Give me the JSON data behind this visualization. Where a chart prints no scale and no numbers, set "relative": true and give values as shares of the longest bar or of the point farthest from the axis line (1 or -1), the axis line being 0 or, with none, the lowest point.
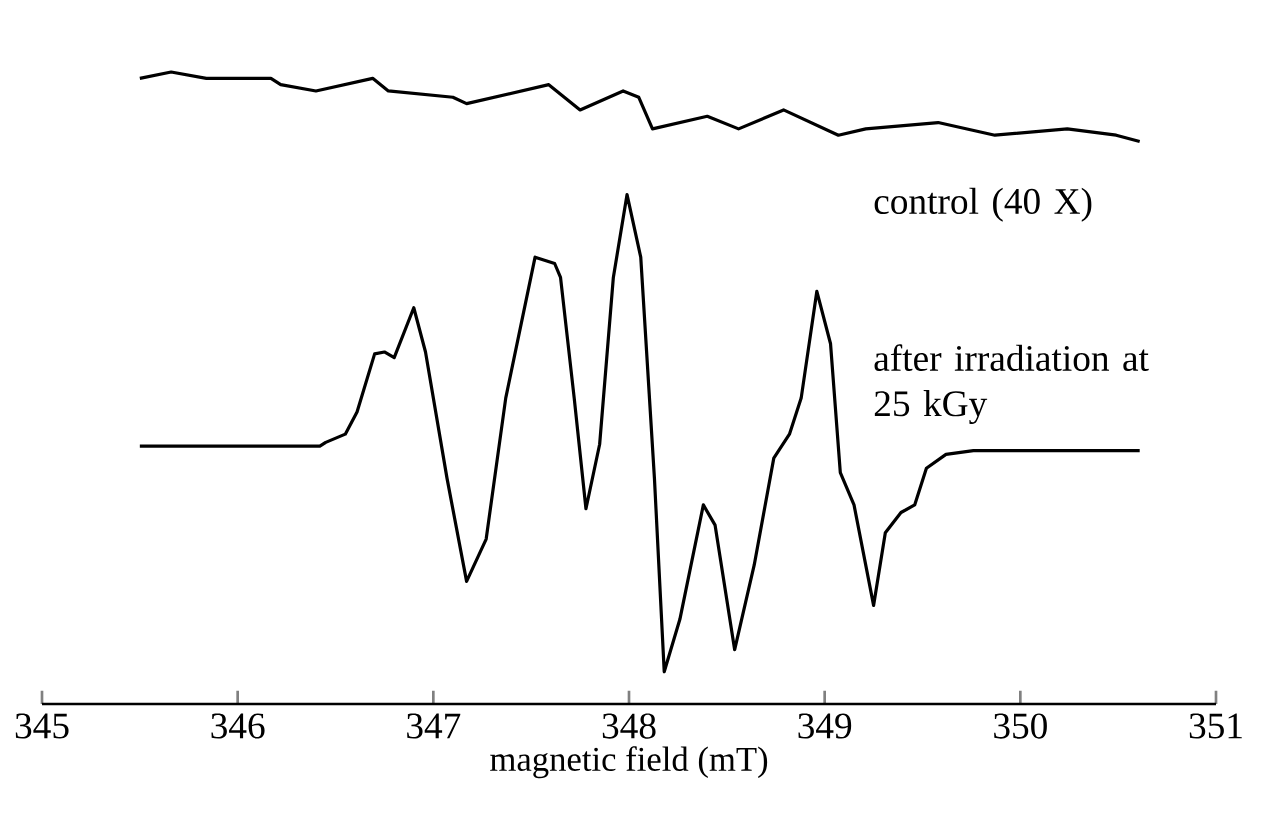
{
  "chart_data": {
    "type": "line",
    "relative": true,
    "xlabel": "magnetic field (mT)",
    "xlim": [
      345,
      351
    ],
    "xticks": [
      345,
      346,
      347,
      348,
      349,
      350,
      351
    ],
    "series": [
      {
        "name": "control (40 X)",
        "color": "#000000",
        "x": [
          345.5,
          345.66,
          345.84,
          346.17,
          346.22,
          346.4,
          346.69,
          346.77,
          347.1,
          347.17,
          347.59,
          347.75,
          347.97,
          348.05,
          348.12,
          348.4,
          348.56,
          348.79,
          349.07,
          349.21,
          349.58,
          349.87,
          350.24,
          350.49,
          350.61
        ],
        "values": [
          0.99,
          1.0,
          0.99,
          0.99,
          0.98,
          0.97,
          0.99,
          0.97,
          0.96,
          0.95,
          0.98,
          0.94,
          0.97,
          0.96,
          0.91,
          0.93,
          0.91,
          0.94,
          0.9,
          0.91,
          0.92,
          0.9,
          0.91,
          0.9,
          0.89
        ]
      },
      {
        "name": "after irradiation at 25 kGy",
        "color": "#000000",
        "x": [
          345.5,
          346.42,
          346.45,
          346.55,
          346.61,
          346.7,
          346.75,
          346.8,
          346.9,
          346.96,
          347.07,
          347.17,
          347.27,
          347.37,
          347.52,
          347.62,
          347.65,
          347.72,
          347.78,
          347.85,
          347.92,
          347.99,
          348.06,
          348.13,
          348.18,
          348.26,
          348.38,
          348.44,
          348.54,
          348.64,
          348.74,
          348.82,
          348.88,
          348.96,
          349.03,
          349.08,
          349.15,
          349.25,
          349.31,
          349.39,
          349.46,
          349.52,
          349.62,
          349.76,
          350.61
        ],
        "values": [
          0.408,
          0.408,
          0.414,
          0.427,
          0.462,
          0.554,
          0.557,
          0.548,
          0.627,
          0.557,
          0.357,
          0.194,
          0.261,
          0.484,
          0.707,
          0.697,
          0.675,
          0.484,
          0.309,
          0.411,
          0.675,
          0.806,
          0.707,
          0.357,
          0.051,
          0.134,
          0.315,
          0.283,
          0.086,
          0.22,
          0.389,
          0.427,
          0.484,
          0.653,
          0.57,
          0.366,
          0.315,
          0.156,
          0.271,
          0.303,
          0.315,
          0.373,
          0.395,
          0.401,
          0.401
        ]
      }
    ]
  }
}
